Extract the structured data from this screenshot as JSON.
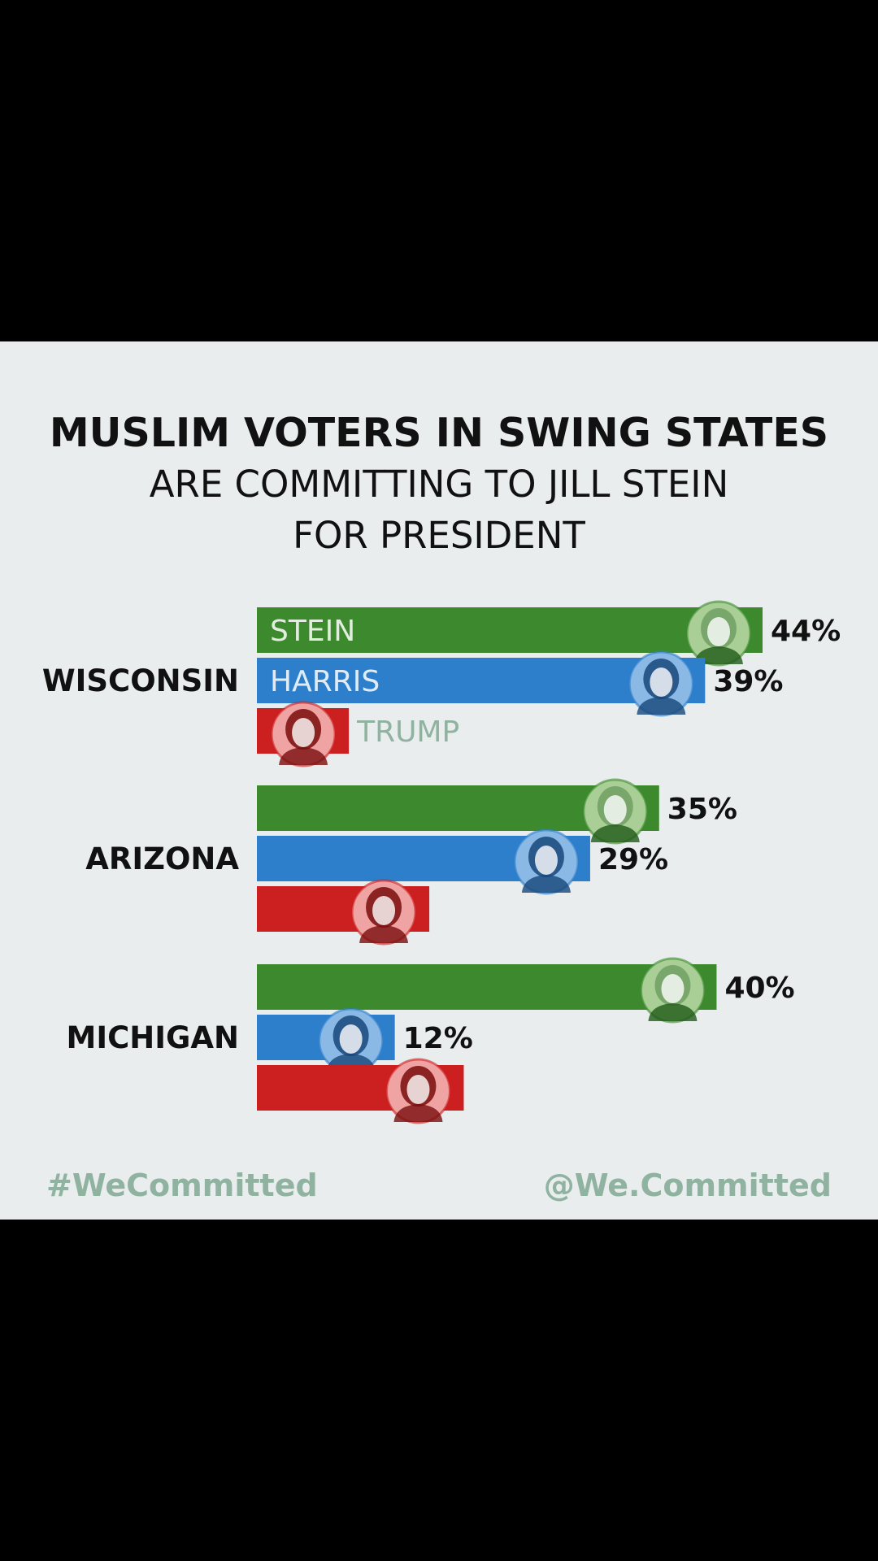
{
  "header": {
    "title": "MUSLIM VOTERS IN SWING STATES",
    "subtitle_line1": "ARE COMMITTING TO JILL STEIN",
    "subtitle_line2": "FOR PRESIDENT"
  },
  "footer": {
    "hashtag": "#WeCommitted",
    "handle": "@We.Committed"
  },
  "colors": {
    "stein": "#3d8a2e",
    "harris": "#2d7fcc",
    "trump": "#cc1f1f",
    "footer_text": "#8fb3a0",
    "background": "#e9eded"
  },
  "icons": {
    "stein": "stein-portrait-icon",
    "harris": "harris-portrait-icon",
    "trump": "trump-portrait-icon"
  },
  "chart_data": {
    "type": "bar",
    "orientation": "horizontal",
    "title": "MUSLIM VOTERS IN SWING STATES",
    "subtitle": "ARE COMMITTING TO JILL STEIN FOR PRESIDENT",
    "categories": [
      "WISCONSIN",
      "ARIZONA",
      "MICHIGAN"
    ],
    "series": [
      {
        "name": "STEIN",
        "key": "stein",
        "values": [
          44,
          35,
          40
        ],
        "value_labels": [
          "44%",
          "35%",
          "40%"
        ]
      },
      {
        "name": "HARRIS",
        "key": "harris",
        "values": [
          39,
          29,
          12
        ],
        "value_labels": [
          "39%",
          "29%",
          "12%"
        ]
      },
      {
        "name": "TRUMP",
        "key": "trump",
        "values": [
          8,
          15,
          18
        ],
        "value_labels": [
          "",
          "",
          ""
        ]
      }
    ],
    "in_bar_labels_category": "WISCONSIN",
    "xlim": [
      0,
      44
    ],
    "grid": false,
    "legend": "none"
  }
}
